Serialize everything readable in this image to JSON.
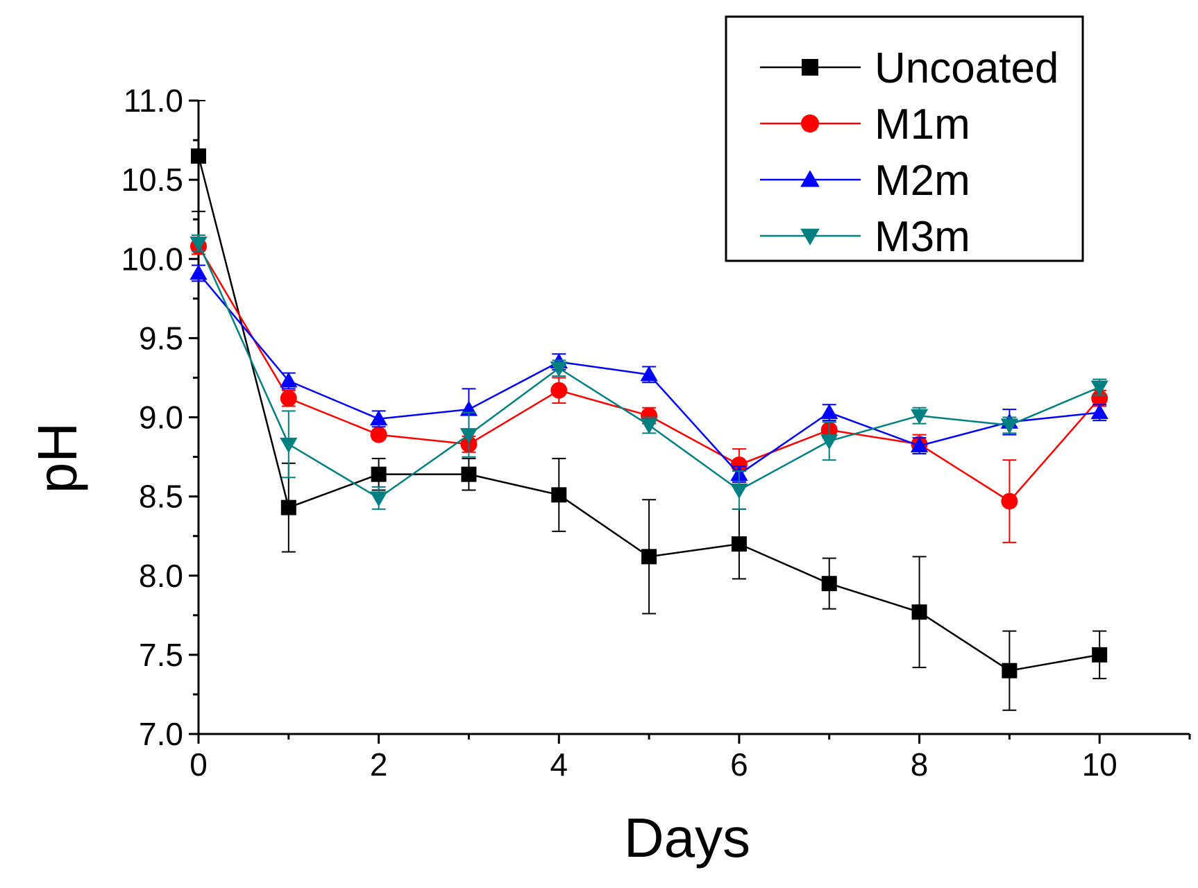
{
  "chart_data": {
    "type": "line",
    "xlabel": "Days",
    "ylabel": "pH",
    "xlim": [
      0,
      11
    ],
    "ylim": [
      7.0,
      11.0
    ],
    "x_ticks": [
      0,
      2,
      4,
      6,
      8,
      10
    ],
    "x_tick_labels": [
      "0",
      "2",
      "4",
      "6",
      "8",
      "10"
    ],
    "y_ticks": [
      7.0,
      7.5,
      8.0,
      8.5,
      9.0,
      9.5,
      10.0,
      10.5,
      11.0
    ],
    "y_tick_labels": [
      "7.0",
      "7.5",
      "8.0",
      "8.5",
      "9.0",
      "9.5",
      "10.0",
      "10.5",
      "11.0"
    ],
    "grid": false,
    "legend_position": "top-right",
    "x": [
      0,
      1,
      2,
      3,
      4,
      5,
      6,
      7,
      8,
      9,
      10
    ],
    "series": [
      {
        "name": "Uncoated",
        "color": "#000000",
        "marker": "square",
        "values": [
          10.65,
          8.43,
          8.64,
          8.64,
          8.51,
          8.12,
          8.2,
          7.95,
          7.77,
          7.4,
          7.5
        ],
        "errors": [
          0.35,
          0.28,
          0.1,
          0.1,
          0.23,
          0.36,
          0.22,
          0.16,
          0.35,
          0.25,
          0.15
        ]
      },
      {
        "name": "M1m",
        "color": "#ff0000",
        "marker": "circle",
        "values": [
          10.08,
          9.12,
          8.89,
          8.83,
          9.17,
          9.01,
          8.7,
          8.92,
          8.83,
          8.47,
          9.12
        ],
        "errors": [
          0.05,
          0.05,
          0.03,
          0.05,
          0.08,
          0.05,
          0.1,
          0.05,
          0.06,
          0.26,
          0.05
        ]
      },
      {
        "name": "M2m",
        "color": "#0000ff",
        "marker": "triangle-up",
        "values": [
          9.91,
          9.23,
          8.99,
          9.05,
          9.35,
          9.27,
          8.64,
          9.03,
          8.82,
          8.97,
          9.03
        ],
        "errors": [
          0.05,
          0.05,
          0.05,
          0.13,
          0.05,
          0.05,
          0.05,
          0.05,
          0.05,
          0.08,
          0.05
        ]
      },
      {
        "name": "M3m",
        "color": "#008080",
        "marker": "triangle-down",
        "values": [
          10.1,
          8.83,
          8.49,
          8.89,
          9.31,
          8.95,
          8.54,
          8.85,
          9.01,
          8.95,
          9.19
        ],
        "errors": [
          0.05,
          0.21,
          0.07,
          0.14,
          0.05,
          0.05,
          0.12,
          0.12,
          0.05,
          0.05,
          0.05
        ]
      }
    ]
  }
}
